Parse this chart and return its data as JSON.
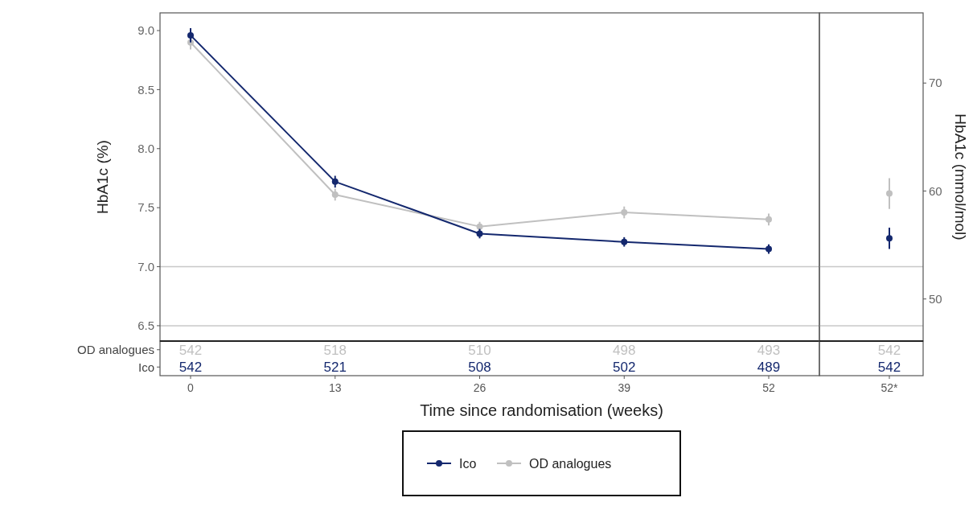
{
  "chart_data": [
    {
      "type": "line",
      "categories": [
        "0",
        "13",
        "26",
        "39",
        "52"
      ],
      "xlabel": "Time since randomisation (weeks)",
      "ylabel": "HbA1c (%)",
      "ylim": [
        6.37,
        9.15
      ],
      "yticks": [
        {
          "value": 6.5,
          "label": "6.5"
        },
        {
          "value": 7,
          "label": "7.0"
        },
        {
          "value": 7.5,
          "label": "7.5"
        },
        {
          "value": 8,
          "label": "8.0"
        },
        {
          "value": 8.5,
          "label": "8.5"
        },
        {
          "value": 9,
          "label": "9.0"
        }
      ],
      "marker": "circle",
      "legend": "bottom",
      "grid": false,
      "y2lim": [
        46.1,
        76.5
      ],
      "y2ticks": [
        50,
        60,
        70
      ],
      "y2label": "HbA1c (mmol/mol)",
      "ref_lines": [
        {
          "axis": "y",
          "value": 7,
          "color": "#c8c8c8"
        },
        {
          "axis": "y",
          "value": 6.5,
          "color": "#c8c8c8"
        }
      ],
      "series": [
        {
          "name": "Ico",
          "color": "#14286e",
          "values": [
            8.96,
            7.72,
            7.28,
            7.21,
            7.15
          ],
          "errors": [
            0.06,
            0.05,
            0.04,
            0.04,
            0.04
          ]
        },
        {
          "name": "OD analogues",
          "color": "#c0c0c0",
          "values": [
            8.9,
            7.61,
            7.34,
            7.46,
            7.4
          ],
          "errors": [
            0.06,
            0.05,
            0.04,
            0.05,
            0.05
          ]
        }
      ],
      "annotations": [
        "OD analogues",
        "Ico",
        "542",
        "518",
        "510",
        "498",
        "493",
        "542",
        "521",
        "508",
        "502",
        "489"
      ]
    },
    {
      "type": "scatter",
      "categories": [
        "52*"
      ],
      "ylim": [
        6.37,
        9.15
      ],
      "tick_labels": "x",
      "marker": "circle",
      "ref_lines": [
        {
          "axis": "y",
          "value": 7,
          "color": "#c8c8c8"
        },
        {
          "axis": "y",
          "value": 6.5,
          "color": "#c8c8c8"
        }
      ],
      "series": [
        {
          "color": "#14286e",
          "values": [
            7.24
          ],
          "errors": [
            0.09
          ]
        },
        {
          "color": "#c0c0c0",
          "values": [
            7.62
          ],
          "errors": [
            0.13
          ]
        }
      ],
      "annotations": [
        "542",
        "542"
      ]
    }
  ]
}
